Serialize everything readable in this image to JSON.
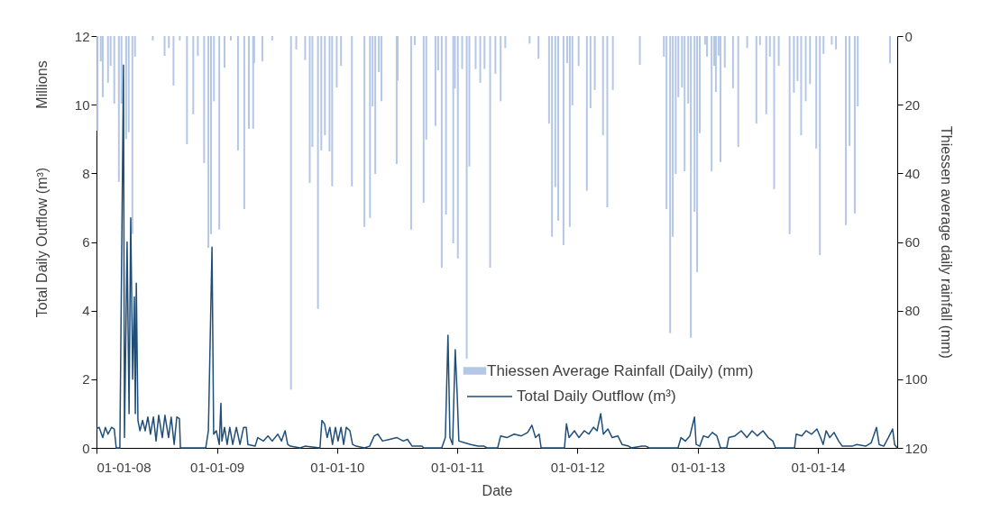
{
  "chart_data": {
    "type": "bar",
    "xlabel": "Date",
    "ylabel": "Total Daily Outflow (m³)",
    "y2label": "Thiessen average daily rainfall (mm)",
    "annotations": [
      "Millions"
    ],
    "legend": "bottom right",
    "xlim": [
      "2008-01-01",
      "2014-08-30"
    ],
    "xticks": [
      {
        "value": "2008-01-01",
        "label": "01-01-08"
      },
      {
        "value": "2009-01-01",
        "label": "01-01-09"
      },
      {
        "value": "2010-01-01",
        "label": "01-01-10"
      },
      {
        "value": "2011-01-01",
        "label": "01-01-11"
      },
      {
        "value": "2012-01-01",
        "label": "01-01-12"
      },
      {
        "value": "2013-01-01",
        "label": "01-01-13"
      },
      {
        "value": "2014-01-01",
        "label": "01-01-14"
      }
    ],
    "ylim": [
      0,
      12
    ],
    "yticks": [
      0,
      2,
      4,
      6,
      8,
      10,
      12
    ],
    "y2lim": [
      120,
      0
    ],
    "y2ticks": [
      0,
      20,
      40,
      60,
      80,
      100,
      120
    ],
    "series": [
      {
        "name": "Thiessen Average Rainfall (Daily) (mm)",
        "type": "bar",
        "axis": "y2",
        "color": "#b4c7e7",
        "x": [
          "2008-01-04",
          "2008-01-14",
          "2008-01-20",
          "2008-02-05",
          "2008-02-13",
          "2008-02-24",
          "2008-03-09",
          "2008-03-17",
          "2008-03-31",
          "2008-04-08",
          "2008-04-19",
          "2008-04-27",
          "2008-06-20",
          "2008-07-26",
          "2008-08-08",
          "2008-08-22",
          "2008-09-10",
          "2008-10-02",
          "2008-10-21",
          "2008-11-04",
          "2008-11-23",
          "2008-12-06",
          "2008-12-14",
          "2008-12-23",
          "2009-01-08",
          "2009-01-24",
          "2009-02-12",
          "2009-03-06",
          "2009-03-25",
          "2009-04-08",
          "2009-04-21",
          "2009-04-24",
          "2009-05-19",
          "2009-06-18",
          "2009-08-14",
          "2009-08-30",
          "2009-09-26",
          "2009-10-10",
          "2009-10-18",
          "2009-11-04",
          "2009-11-14",
          "2009-11-25",
          "2009-12-09",
          "2009-12-17",
          "2009-12-31",
          "2010-01-13",
          "2010-02-15",
          "2010-03-25",
          "2010-04-11",
          "2010-04-19",
          "2010-04-27",
          "2010-05-08",
          "2010-05-16",
          "2010-07-01",
          "2010-07-04",
          "2010-08-14",
          "2010-08-25",
          "2010-09-21",
          "2010-09-29",
          "2010-10-27",
          "2010-11-04",
          "2010-11-15",
          "2010-11-28",
          "2010-12-20",
          "2010-12-25",
          "2011-01-03",
          "2011-01-16",
          "2011-01-30",
          "2011-02-07",
          "2011-02-26",
          "2011-03-12",
          "2011-03-25",
          "2011-04-11",
          "2011-04-27",
          "2011-05-13",
          "2011-05-27",
          "2011-08-09",
          "2011-09-05",
          "2011-10-07",
          "2011-10-16",
          "2011-10-26",
          "2011-11-04",
          "2011-11-20",
          "2011-12-01",
          "2011-12-09",
          "2011-12-17",
          "2012-01-05",
          "2012-01-30",
          "2012-02-10",
          "2012-02-23",
          "2012-03-19",
          "2012-04-01",
          "2012-04-18",
          "2012-07-09",
          "2012-09-20",
          "2012-09-28",
          "2012-10-09",
          "2012-10-17",
          "2012-10-26",
          "2012-11-03",
          "2012-11-14",
          "2012-11-22",
          "2012-12-03",
          "2012-12-11",
          "2012-12-22",
          "2012-12-30",
          "2013-01-07",
          "2013-01-23",
          "2013-01-29",
          "2013-02-12",
          "2013-02-20",
          "2013-02-25",
          "2013-03-05",
          "2013-03-11",
          "2013-03-24",
          "2013-04-18",
          "2013-05-04",
          "2013-05-31",
          "2013-06-28",
          "2013-07-09",
          "2013-07-28",
          "2013-08-08",
          "2013-08-21",
          "2013-09-04",
          "2013-10-07",
          "2013-10-20",
          "2013-10-31",
          "2013-11-11",
          "2013-11-25",
          "2013-12-08",
          "2013-12-27",
          "2014-01-07",
          "2014-01-18",
          "2014-02-12",
          "2014-02-25",
          "2014-03-27",
          "2014-04-07",
          "2014-04-23",
          "2014-05-02",
          "2014-08-08"
        ],
        "values": [
          27.6,
          7.4,
          17.8,
          13.6,
          8.7,
          19.7,
          42.5,
          19.7,
          30,
          28,
          57.7,
          6,
          1.3,
          5.8,
          3.5,
          14.4,
          1.3,
          31.5,
          22.8,
          5.8,
          37,
          61.7,
          57.7,
          19,
          56.4,
          9.2,
          1.3,
          33.3,
          50.4,
          27,
          27,
          7.9,
          7.4,
          1.3,
          103,
          3.9,
          7,
          42.8,
          32.3,
          79.5,
          33.3,
          28.9,
          33.6,
          43.8,
          15,
          8.7,
          43.8,
          55.6,
          53,
          20.5,
          40.2,
          10.5,
          19,
          37.3,
          13,
          56.4,
          2.6,
          48.6,
          30.2,
          26.2,
          10,
          67.5,
          52,
          60.4,
          15.3,
          64.8,
          9.6,
          94,
          38,
          9.6,
          13.6,
          9.6,
          67.5,
          11,
          19,
          3.5,
          2.2,
          6.6,
          25.5,
          58.5,
          44,
          53.8,
          60.9,
          7.9,
          55.6,
          20.2,
          8.7,
          45.1,
          21,
          15.7,
          28.9,
          49.9,
          15.7,
          8.4,
          6,
          50.4,
          86.6,
          58.5,
          40.2,
          17.8,
          15,
          39.4,
          19.7,
          87.9,
          51.2,
          68.8,
          28.3,
          2.5,
          6,
          39.4,
          8.7,
          16.3,
          5.7,
          36.7,
          9.2,
          15.2,
          32.3,
          3.5,
          25.5,
          2.6,
          22.8,
          6,
          44.6,
          8.7,
          57.7,
          16.5,
          13.1,
          28.9,
          19,
          14,
          32.8,
          63.8,
          5.2,
          2.5,
          3.9,
          55.1,
          32,
          51.7,
          20.5,
          7.9
        ]
      },
      {
        "name": "Total Daily Outflow (m³)",
        "type": "line",
        "axis": "y",
        "color": "#1f4e79",
        "x": [
          "2008-01-01",
          "2008-01-09",
          "2008-01-20",
          "2008-01-28",
          "2008-02-05",
          "2008-02-16",
          "2008-02-24",
          "2008-03-01",
          "2008-03-12",
          "2008-03-23",
          "2008-03-26",
          "2008-04-03",
          "2008-04-09",
          "2008-04-14",
          "2008-04-20",
          "2008-04-25",
          "2008-04-28",
          "2008-05-01",
          "2008-05-06",
          "2008-05-12",
          "2008-05-20",
          "2008-05-28",
          "2008-06-05",
          "2008-06-13",
          "2008-06-22",
          "2008-06-30",
          "2008-07-08",
          "2008-07-19",
          "2008-07-27",
          "2008-08-07",
          "2008-08-15",
          "2008-08-24",
          "2008-09-01",
          "2008-09-09",
          "2008-09-12",
          "2008-11-28",
          "2008-12-06",
          "2008-12-17",
          "2008-12-22",
          "2008-12-30",
          "2009-01-08",
          "2009-01-13",
          "2009-01-16",
          "2009-01-24",
          "2009-02-01",
          "2009-02-09",
          "2009-02-18",
          "2009-03-01",
          "2009-03-12",
          "2009-03-23",
          "2009-03-31",
          "2009-04-05",
          "2009-04-27",
          "2009-05-05",
          "2009-05-22",
          "2009-06-05",
          "2009-06-18",
          "2009-07-05",
          "2009-07-16",
          "2009-07-27",
          "2009-08-04",
          "2009-08-12",
          "2009-09-11",
          "2009-09-25",
          "2009-11-10",
          "2009-11-16",
          "2009-11-24",
          "2009-12-02",
          "2009-12-10",
          "2009-12-18",
          "2009-12-27",
          "2010-01-04",
          "2010-01-13",
          "2010-01-21",
          "2010-01-29",
          "2010-02-09",
          "2010-02-17",
          "2010-02-28",
          "2010-03-25",
          "2010-04-10",
          "2010-04-24",
          "2010-05-05",
          "2010-05-19",
          "2010-06-10",
          "2010-07-02",
          "2010-07-21",
          "2010-08-03",
          "2010-08-17",
          "2010-09-16",
          "2010-09-21",
          "2010-11-15",
          "2010-11-26",
          "2010-12-04",
          "2010-12-10",
          "2010-12-18",
          "2010-12-26",
          "2011-01-01",
          "2011-01-06",
          "2011-01-23",
          "2011-02-11",
          "2011-03-05",
          "2011-03-24",
          "2011-04-01",
          "2011-05-04",
          "2011-05-13",
          "2011-06-01",
          "2011-06-23",
          "2011-07-15",
          "2011-08-03",
          "2011-08-16",
          "2011-08-27",
          "2011-09-07",
          "2011-09-13",
          "2011-11-23",
          "2011-11-29",
          "2011-12-07",
          "2011-12-23",
          "2012-01-06",
          "2012-01-22",
          "2012-02-05",
          "2012-02-19",
          "2012-03-01",
          "2012-03-12",
          "2012-03-20",
          "2012-04-03",
          "2012-04-16",
          "2012-05-03",
          "2012-05-16",
          "2012-06-05",
          "2012-06-13",
          "2012-07-16",
          "2012-07-27",
          "2012-08-07",
          "2012-11-02",
          "2012-11-11",
          "2012-11-24",
          "2012-12-08",
          "2012-12-22",
          "2012-12-27",
          "2013-01-07",
          "2013-01-18",
          "2013-02-01",
          "2013-02-14",
          "2013-02-28",
          "2013-03-11",
          "2013-03-30",
          "2013-04-05",
          "2013-04-24",
          "2013-05-13",
          "2013-05-30",
          "2013-06-15",
          "2013-07-01",
          "2013-07-18",
          "2013-08-03",
          "2013-08-17",
          "2013-08-25",
          "2013-10-22",
          "2013-10-27",
          "2013-11-13",
          "2013-11-26",
          "2013-12-13",
          "2013-12-29",
          "2014-01-09",
          "2014-01-17",
          "2014-01-26",
          "2014-02-06",
          "2014-02-19",
          "2014-03-05",
          "2014-03-16",
          "2014-04-15",
          "2014-04-29",
          "2014-05-26",
          "2014-06-12",
          "2014-06-28",
          "2014-07-06",
          "2014-07-20",
          "2014-08-03",
          "2014-08-16",
          "2014-08-22",
          "2014-08-30"
        ],
        "values": [
          0.55,
          0.6,
          0.3,
          0.6,
          0.4,
          0.6,
          0.55,
          0,
          0,
          11.15,
          0.3,
          6.0,
          1.0,
          6.7,
          2.0,
          4.4,
          1.0,
          4.8,
          0.8,
          0.5,
          0.8,
          0.5,
          0.9,
          0.4,
          0.9,
          0.2,
          0.95,
          0.3,
          0.95,
          0.3,
          0.9,
          0.1,
          0.9,
          0.85,
          0,
          0,
          0.5,
          5.85,
          0.4,
          0.5,
          0.1,
          1.3,
          0.2,
          0.6,
          0.1,
          0.6,
          0.1,
          0.6,
          0.1,
          0.6,
          0.6,
          0.1,
          0.05,
          0.3,
          0.2,
          0.35,
          0.2,
          0.4,
          0.2,
          0.5,
          0.1,
          0.05,
          0,
          0.05,
          0,
          0.8,
          0.7,
          0.3,
          0.6,
          0.1,
          0.6,
          0.2,
          0.6,
          0.1,
          0.6,
          0.5,
          0.1,
          0.05,
          0,
          0.05,
          0.35,
          0.4,
          0.2,
          0.25,
          0.3,
          0.2,
          0.25,
          0.05,
          0.05,
          0,
          0,
          0.3,
          3.28,
          0.3,
          0.1,
          2.86,
          1.55,
          0.2,
          0.15,
          0.1,
          0.05,
          0.05,
          0,
          0,
          0.35,
          0.3,
          0.4,
          0.35,
          0.45,
          0.66,
          0.3,
          0.4,
          0,
          0,
          0.7,
          0.3,
          0.5,
          0.3,
          0.5,
          0.4,
          0.6,
          0.5,
          1.0,
          0.4,
          0.55,
          0.3,
          0.35,
          0.1,
          0.05,
          0,
          0.05,
          0.05,
          0,
          0,
          0.3,
          0.2,
          0.35,
          0.9,
          0.1,
          0.05,
          0.35,
          0.3,
          0.45,
          0.35,
          0,
          0,
          0.3,
          0.35,
          0.5,
          0.3,
          0.5,
          0.35,
          0.5,
          0.3,
          0.2,
          0,
          0,
          0.4,
          0.35,
          0.5,
          0.4,
          0.55,
          0.3,
          0.1,
          0.5,
          0.3,
          0.45,
          0.2,
          0.05,
          0.05,
          0.1,
          0.05,
          0.15,
          0.6,
          0.1,
          0.05,
          0.3,
          0.55,
          0.1,
          0
        ]
      }
    ]
  }
}
